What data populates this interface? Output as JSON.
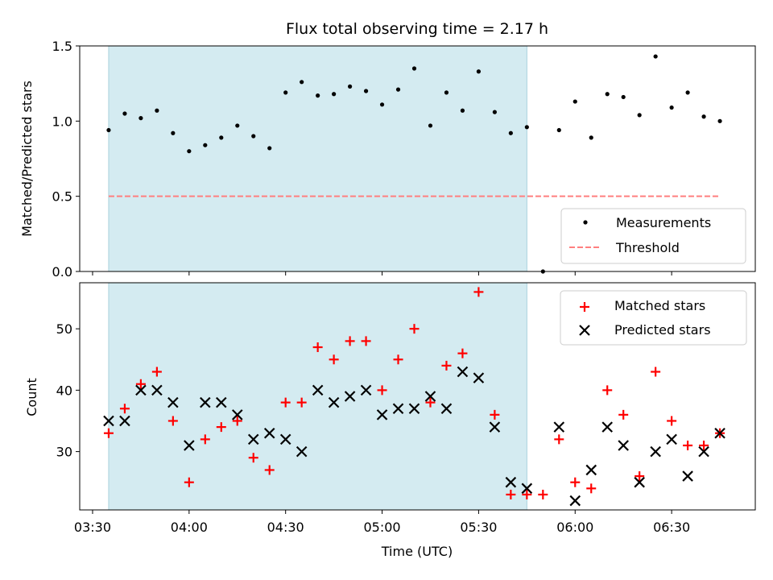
{
  "chart_data": [
    {
      "type": "scatter",
      "title": "Flux total observing time = 2.17 h",
      "xlabel": "",
      "ylabel": "Matched/Predicted stars",
      "ylim": [
        0,
        1.5
      ],
      "yticks": [
        "0.0",
        "0.5",
        "1.0",
        "1.5"
      ],
      "xlim_minutes": [
        206,
        416
      ],
      "xticks": [
        "03:30",
        "04:00",
        "04:30",
        "05:00",
        "05:30",
        "06:00",
        "06:30"
      ],
      "x_tick_labels_visible": false,
      "shaded_span": {
        "start": "03:35",
        "end": "05:45",
        "color": "#d4ebf1"
      },
      "threshold": {
        "name": "Threshold",
        "y": 0.5,
        "color": "#ff7f7f",
        "style": "dashed",
        "x_start": "03:35",
        "x_end": "06:45"
      },
      "legend": {
        "location": "lower right",
        "entries": [
          "Measurements",
          "Threshold"
        ]
      },
      "series": [
        {
          "name": "Measurements",
          "color": "#000000",
          "marker": "dot",
          "x": [
            "03:35",
            "03:40",
            "03:45",
            "03:50",
            "03:55",
            "04:00",
            "04:05",
            "04:10",
            "04:15",
            "04:20",
            "04:25",
            "04:30",
            "04:35",
            "04:40",
            "04:45",
            "04:50",
            "04:55",
            "05:00",
            "05:05",
            "05:10",
            "05:15",
            "05:20",
            "05:25",
            "05:30",
            "05:35",
            "05:40",
            "05:45",
            "05:50",
            "05:55",
            "06:00",
            "06:05",
            "06:10",
            "06:15",
            "06:20",
            "06:25",
            "06:30",
            "06:35",
            "06:40",
            "06:45"
          ],
          "y": [
            0.94,
            1.05,
            1.02,
            1.07,
            0.92,
            0.8,
            0.84,
            0.89,
            0.97,
            0.9,
            0.82,
            1.19,
            1.26,
            1.17,
            1.18,
            1.23,
            1.2,
            1.11,
            1.21,
            1.35,
            0.97,
            1.19,
            1.07,
            1.33,
            1.06,
            0.92,
            0.96,
            0.0,
            0.94,
            1.13,
            0.89,
            1.18,
            1.16,
            1.04,
            1.43,
            1.09,
            1.19,
            1.03,
            1.0
          ]
        }
      ]
    },
    {
      "type": "scatter",
      "title": "",
      "xlabel": "Time (UTC)",
      "ylabel": "Count",
      "ylim": [
        20.5,
        57.5
      ],
      "yticks": [
        "30",
        "40",
        "50"
      ],
      "xlim_minutes": [
        206,
        416
      ],
      "xticks": [
        "03:30",
        "04:00",
        "04:30",
        "05:00",
        "05:30",
        "06:00",
        "06:30"
      ],
      "shaded_span": {
        "start": "03:35",
        "end": "05:45",
        "color": "#d4ebf1"
      },
      "legend": {
        "location": "upper right",
        "entries": [
          "Matched stars",
          "Predicted stars"
        ]
      },
      "series": [
        {
          "name": "Matched stars",
          "color": "#ff0000",
          "marker": "plus",
          "x": [
            "03:35",
            "03:40",
            "03:45",
            "03:50",
            "03:55",
            "04:00",
            "04:05",
            "04:10",
            "04:15",
            "04:20",
            "04:25",
            "04:30",
            "04:35",
            "04:40",
            "04:45",
            "04:50",
            "04:55",
            "05:00",
            "05:05",
            "05:10",
            "05:15",
            "05:20",
            "05:25",
            "05:30",
            "05:35",
            "05:40",
            "05:45",
            "05:50",
            "05:55",
            "06:00",
            "06:05",
            "06:10",
            "06:15",
            "06:20",
            "06:25",
            "06:30",
            "06:35",
            "06:40",
            "06:45"
          ],
          "y": [
            33,
            37,
            41,
            43,
            35,
            25,
            32,
            34,
            35,
            29,
            27,
            38,
            38,
            47,
            45,
            48,
            48,
            40,
            45,
            50,
            38,
            44,
            46,
            56,
            36,
            23,
            23,
            23,
            32,
            25,
            24,
            40,
            36,
            26,
            43,
            35,
            31,
            31,
            33
          ]
        },
        {
          "name": "Predicted stars",
          "color": "#000000",
          "marker": "x",
          "x": [
            "03:35",
            "03:40",
            "03:45",
            "03:50",
            "03:55",
            "04:00",
            "04:05",
            "04:10",
            "04:15",
            "04:20",
            "04:25",
            "04:30",
            "04:35",
            "04:40",
            "04:45",
            "04:50",
            "04:55",
            "05:00",
            "05:05",
            "05:10",
            "05:15",
            "05:20",
            "05:25",
            "05:30",
            "05:35",
            "05:40",
            "05:45",
            "05:55",
            "06:00",
            "06:05",
            "06:10",
            "06:15",
            "06:20",
            "06:25",
            "06:30",
            "06:35",
            "06:40",
            "06:45"
          ],
          "y": [
            35,
            35,
            40,
            40,
            38,
            31,
            38,
            38,
            36,
            32,
            33,
            32,
            30,
            40,
            38,
            39,
            40,
            36,
            37,
            37,
            39,
            37,
            43,
            42,
            34,
            25,
            24,
            34,
            22,
            27,
            34,
            31,
            25,
            30,
            32,
            26,
            30,
            33
          ]
        }
      ]
    }
  ]
}
